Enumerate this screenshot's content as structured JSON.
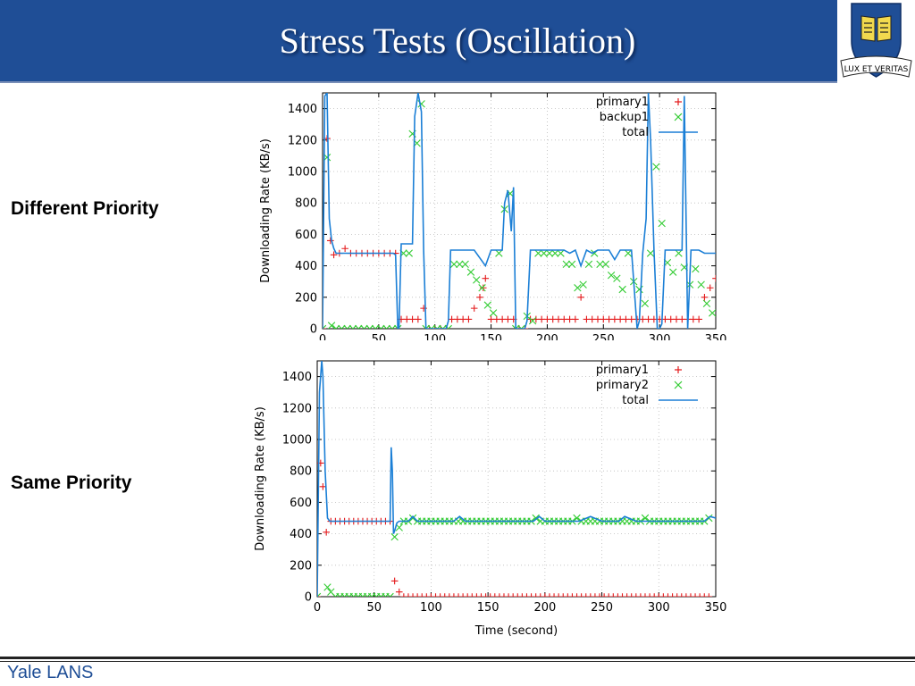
{
  "slide": {
    "title": "Stress Tests (Oscillation)",
    "footer": "Yale LANS",
    "row_labels": [
      "Different Priority",
      "Same Priority"
    ],
    "logo": {
      "icon": "yale-shield-icon",
      "motto": "LUX ET VERITAS",
      "colors": {
        "shield": "#1f4e96",
        "book": "#f2d94e"
      }
    }
  },
  "colors": {
    "header": "#1f4e96",
    "primary1": "#e41a1c",
    "series2": "#33cc33",
    "total": "#1b7fd6"
  },
  "chart_data": [
    {
      "type": "line",
      "title": "",
      "xlabel": "",
      "ylabel": "Downloading Rate (KB/s)",
      "xlim": [
        0,
        350
      ],
      "ylim": [
        0,
        1500
      ],
      "xticks": [
        0,
        50,
        100,
        150,
        200,
        250,
        300,
        350
      ],
      "yticks": [
        0,
        200,
        400,
        600,
        800,
        1000,
        1200,
        1400
      ],
      "grid": true,
      "legend": "top-right",
      "series": [
        {
          "name": "primary1",
          "style": "plus",
          "color": "#e41a1c",
          "x": [
            0,
            4,
            7,
            10,
            15,
            20,
            25,
            30,
            35,
            40,
            45,
            50,
            55,
            60,
            65,
            70,
            75,
            80,
            85,
            90,
            95,
            100,
            105,
            110,
            115,
            120,
            125,
            130,
            135,
            140,
            143,
            145,
            150,
            155,
            160,
            165,
            170,
            175,
            180,
            185,
            190,
            195,
            200,
            205,
            210,
            215,
            220,
            225,
            230,
            235,
            240,
            245,
            250,
            255,
            260,
            265,
            270,
            275,
            280,
            285,
            290,
            295,
            300,
            305,
            310,
            315,
            320,
            325,
            330,
            335,
            340,
            345,
            350
          ],
          "y": [
            0,
            1210,
            560,
            470,
            480,
            510,
            480,
            480,
            480,
            480,
            480,
            480,
            480,
            480,
            480,
            60,
            60,
            60,
            60,
            130,
            0,
            0,
            0,
            0,
            60,
            60,
            60,
            60,
            130,
            200,
            260,
            320,
            60,
            60,
            60,
            60,
            60,
            0,
            0,
            60,
            60,
            60,
            60,
            60,
            60,
            60,
            60,
            60,
            200,
            60,
            60,
            60,
            60,
            60,
            60,
            60,
            60,
            60,
            60,
            60,
            60,
            60,
            60,
            60,
            60,
            60,
            60,
            60,
            60,
            60,
            200,
            260,
            320
          ]
        },
        {
          "name": "backup1",
          "style": "cross",
          "color": "#33cc33",
          "x": [
            0,
            4,
            8,
            12,
            17,
            22,
            27,
            32,
            37,
            42,
            47,
            52,
            57,
            62,
            67,
            72,
            77,
            80,
            84,
            88,
            92,
            97,
            102,
            107,
            112,
            117,
            122,
            127,
            132,
            137,
            142,
            147,
            152,
            157,
            162,
            167,
            172,
            177,
            182,
            187,
            192,
            197,
            202,
            207,
            212,
            217,
            222,
            227,
            232,
            237,
            242,
            247,
            252,
            257,
            262,
            267,
            272,
            277,
            282,
            287,
            292,
            297,
            302,
            307,
            312,
            317,
            322,
            327,
            332,
            337,
            342,
            347
          ],
          "y": [
            0,
            1090,
            20,
            0,
            0,
            0,
            0,
            0,
            0,
            0,
            0,
            0,
            0,
            0,
            0,
            480,
            480,
            1240,
            1180,
            1430,
            0,
            0,
            0,
            0,
            0,
            410,
            410,
            410,
            360,
            310,
            260,
            150,
            100,
            480,
            760,
            860,
            0,
            0,
            80,
            50,
            480,
            480,
            480,
            480,
            480,
            410,
            410,
            260,
            280,
            410,
            480,
            410,
            410,
            340,
            320,
            250,
            480,
            300,
            250,
            160,
            480,
            1030,
            670,
            420,
            360,
            480,
            390,
            280,
            380,
            280,
            160,
            100
          ]
        },
        {
          "name": "total",
          "style": "line",
          "color": "#1b7fd6",
          "x": [
            0,
            2,
            4,
            6,
            8,
            10,
            12,
            15,
            20,
            25,
            30,
            35,
            40,
            45,
            50,
            55,
            60,
            63,
            65,
            67,
            68,
            70,
            75,
            80,
            82,
            85,
            88,
            90,
            92,
            94,
            95,
            100,
            105,
            110,
            112,
            114,
            116,
            120,
            125,
            130,
            135,
            140,
            145,
            150,
            155,
            160,
            162,
            165,
            168,
            170,
            172,
            175,
            178,
            180,
            182,
            185,
            190,
            195,
            200,
            205,
            210,
            215,
            220,
            225,
            230,
            235,
            240,
            245,
            250,
            255,
            260,
            265,
            270,
            275,
            280,
            282,
            285,
            288,
            290,
            292,
            295,
            298,
            300,
            302,
            305,
            310,
            315,
            320,
            322,
            325,
            328,
            330,
            335,
            340,
            345,
            350
          ],
          "y": [
            0,
            1480,
            1500,
            700,
            560,
            510,
            480,
            480,
            480,
            480,
            480,
            480,
            480,
            480,
            480,
            480,
            480,
            480,
            470,
            0,
            0,
            540,
            540,
            540,
            1350,
            1500,
            1380,
            500,
            0,
            0,
            0,
            0,
            0,
            0,
            50,
            500,
            500,
            500,
            500,
            500,
            500,
            450,
            400,
            500,
            500,
            500,
            800,
            880,
            620,
            900,
            0,
            0,
            0,
            0,
            50,
            500,
            500,
            500,
            500,
            500,
            500,
            500,
            480,
            500,
            400,
            500,
            480,
            500,
            500,
            500,
            440,
            500,
            500,
            500,
            0,
            50,
            480,
            700,
            1500,
            1200,
            500,
            0,
            0,
            30,
            500,
            500,
            500,
            500,
            1480,
            0,
            500,
            500,
            500,
            480,
            480,
            480
          ]
        }
      ]
    },
    {
      "type": "line",
      "title": "",
      "xlabel": "Time (second)",
      "ylabel": "Downloading Rate (KB/s)",
      "xlim": [
        0,
        350
      ],
      "ylim": [
        0,
        1500
      ],
      "xticks": [
        0,
        50,
        100,
        150,
        200,
        250,
        300,
        350
      ],
      "yticks": [
        0,
        200,
        400,
        600,
        800,
        1000,
        1200,
        1400
      ],
      "grid": true,
      "legend": "top-right",
      "series": [
        {
          "name": "primary1",
          "style": "plus",
          "color": "#e41a1c",
          "x": [
            0,
            3,
            5,
            8,
            12,
            16,
            20,
            24,
            28,
            32,
            36,
            40,
            44,
            48,
            52,
            56,
            60,
            64,
            68,
            72,
            76,
            80,
            84,
            88,
            92,
            96,
            100,
            104,
            108,
            112,
            116,
            120,
            124,
            128,
            132,
            136,
            140,
            144,
            148,
            152,
            156,
            160,
            164,
            168,
            172,
            176,
            180,
            184,
            188,
            192,
            196,
            200,
            204,
            208,
            212,
            216,
            220,
            224,
            228,
            232,
            236,
            240,
            244,
            248,
            252,
            256,
            260,
            264,
            268,
            272,
            276,
            280,
            284,
            288,
            292,
            296,
            300,
            304,
            308,
            312,
            316,
            320,
            324,
            328,
            332,
            336,
            340,
            344
          ],
          "y": [
            0,
            850,
            700,
            410,
            480,
            480,
            480,
            480,
            480,
            480,
            480,
            480,
            480,
            480,
            480,
            480,
            480,
            480,
            100,
            30,
            0,
            0,
            0,
            0,
            0,
            0,
            0,
            0,
            0,
            0,
            0,
            0,
            0,
            0,
            0,
            0,
            0,
            0,
            0,
            0,
            0,
            0,
            0,
            0,
            0,
            0,
            0,
            0,
            0,
            0,
            0,
            0,
            0,
            0,
            0,
            0,
            0,
            0,
            0,
            0,
            0,
            0,
            0,
            0,
            0,
            0,
            0,
            0,
            0,
            0,
            0,
            0,
            0,
            0,
            0,
            0,
            0,
            0,
            0,
            0,
            0,
            0,
            0,
            0,
            0,
            0,
            0,
            0
          ]
        },
        {
          "name": "primary2",
          "style": "cross",
          "color": "#33cc33",
          "x": [
            0,
            9,
            12,
            16,
            20,
            24,
            28,
            32,
            36,
            40,
            44,
            48,
            52,
            56,
            60,
            64,
            68,
            72,
            76,
            80,
            84,
            88,
            92,
            96,
            100,
            104,
            108,
            112,
            116,
            120,
            124,
            128,
            132,
            136,
            140,
            144,
            148,
            152,
            156,
            160,
            164,
            168,
            172,
            176,
            180,
            184,
            188,
            192,
            196,
            200,
            204,
            208,
            212,
            216,
            220,
            224,
            228,
            232,
            236,
            240,
            244,
            248,
            252,
            256,
            260,
            264,
            268,
            272,
            276,
            280,
            284,
            288,
            292,
            296,
            300,
            304,
            308,
            312,
            316,
            320,
            324,
            328,
            332,
            336,
            340,
            344
          ],
          "y": [
            0,
            60,
            30,
            0,
            0,
            0,
            0,
            0,
            0,
            0,
            0,
            0,
            0,
            0,
            0,
            0,
            380,
            440,
            480,
            480,
            500,
            480,
            480,
            480,
            480,
            480,
            480,
            480,
            480,
            480,
            480,
            480,
            480,
            480,
            480,
            480,
            480,
            480,
            480,
            480,
            480,
            480,
            480,
            480,
            480,
            480,
            480,
            500,
            480,
            480,
            480,
            480,
            480,
            480,
            480,
            480,
            500,
            480,
            480,
            480,
            480,
            480,
            480,
            480,
            480,
            480,
            480,
            480,
            480,
            480,
            480,
            500,
            480,
            480,
            480,
            480,
            480,
            480,
            480,
            480,
            480,
            480,
            480,
            480,
            480,
            500
          ]
        },
        {
          "name": "total",
          "style": "line",
          "color": "#1b7fd6",
          "x": [
            0,
            2,
            4,
            5,
            7,
            9,
            11,
            14,
            20,
            30,
            40,
            50,
            60,
            64,
            65,
            66,
            67,
            68,
            70,
            72,
            75,
            80,
            84,
            88,
            95,
            100,
            110,
            120,
            125,
            130,
            140,
            150,
            160,
            170,
            180,
            190,
            195,
            200,
            210,
            220,
            230,
            240,
            250,
            260,
            265,
            270,
            280,
            285,
            290,
            300,
            310,
            320,
            330,
            340,
            345,
            350
          ],
          "y": [
            0,
            1300,
            1500,
            1400,
            800,
            500,
            480,
            480,
            480,
            480,
            480,
            480,
            480,
            480,
            950,
            800,
            400,
            420,
            470,
            480,
            480,
            480,
            510,
            480,
            480,
            480,
            480,
            480,
            510,
            480,
            480,
            480,
            480,
            480,
            480,
            480,
            510,
            480,
            480,
            480,
            480,
            510,
            480,
            480,
            480,
            510,
            480,
            480,
            480,
            480,
            480,
            480,
            480,
            480,
            510,
            500
          ]
        }
      ]
    }
  ]
}
